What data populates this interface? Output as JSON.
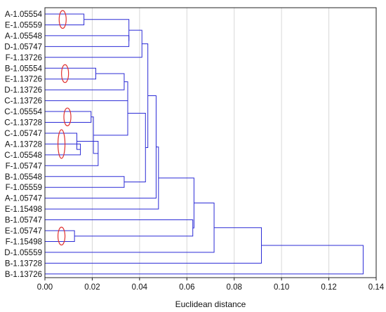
{
  "chart_data": {
    "type": "dendrogram",
    "orientation": "horizontal",
    "xlabel": "Euclidean distance",
    "xlim": [
      0,
      0.14
    ],
    "xticks": [
      "0.00",
      "0.02",
      "0.04",
      "0.06",
      "0.08",
      "0.10",
      "0.12",
      "0.14"
    ],
    "grid": true,
    "leaves": [
      "A-1.05554",
      "E-1.05559",
      "A-1.05548",
      "D-1.05747",
      "F-1.13726",
      "B-1.05554",
      "E-1.13726",
      "D-1.13726",
      "C-1.13726",
      "C-1.05554",
      "C-1.13728",
      "C-1.05747",
      "A-1.13728",
      "C-1.05548",
      "F-1.05747",
      "B-1.05548",
      "F-1.05559",
      "A-1.05747",
      "E-1.15498",
      "B-1.05747",
      "E-1.05747",
      "F-1.15498",
      "D-1.05559",
      "B-1.13728",
      "B-1.13726"
    ],
    "merges": [
      {
        "id": "n1",
        "left": 0,
        "right": 1,
        "height": 0.0165
      },
      {
        "id": "n2",
        "left": 2,
        "right": 3,
        "height": 0.0355
      },
      {
        "id": "n3",
        "left": "n1",
        "right": "n2",
        "height": 0.0355
      },
      {
        "id": "n4",
        "left": "n3",
        "right": 4,
        "height": 0.041
      },
      {
        "id": "n5",
        "left": 5,
        "right": 6,
        "height": 0.0215
      },
      {
        "id": "n6",
        "left": "n5",
        "right": 7,
        "height": 0.0335
      },
      {
        "id": "n7",
        "left": "n6",
        "right": 8,
        "height": 0.035
      },
      {
        "id": "n8",
        "left": 9,
        "right": 10,
        "height": 0.0195
      },
      {
        "id": "n9",
        "left": 12,
        "right": 13,
        "height": 0.015
      },
      {
        "id": "n10",
        "left": 11,
        "right": "n9",
        "height": 0.0135
      },
      {
        "id": "n11",
        "left": "n10",
        "right": 14,
        "height": 0.0225
      },
      {
        "id": "n12",
        "left": "n8",
        "right": "n11",
        "height": 0.0205
      },
      {
        "id": "n13",
        "left": "n7",
        "right": "n12",
        "height": 0.035
      },
      {
        "id": "n14",
        "left": 15,
        "right": 16,
        "height": 0.0335
      },
      {
        "id": "n15",
        "left": "n13",
        "right": "n14",
        "height": 0.0425
      },
      {
        "id": "n16",
        "left": "n4",
        "right": "n15",
        "height": 0.0435
      },
      {
        "id": "n17",
        "left": "n16",
        "right": 17,
        "height": 0.047
      },
      {
        "id": "n18",
        "left": "n17",
        "right": 18,
        "height": 0.048
      },
      {
        "id": "n19",
        "left": 20,
        "right": 21,
        "height": 0.0125
      },
      {
        "id": "n20",
        "left": 19,
        "right": "n19",
        "height": 0.0625
      },
      {
        "id": "n21",
        "left": "n18",
        "right": "n20",
        "height": 0.063
      },
      {
        "id": "n22",
        "left": "n21",
        "right": 22,
        "height": 0.0715
      },
      {
        "id": "n23",
        "left": "n22",
        "right": 23,
        "height": 0.0915
      },
      {
        "id": "n24",
        "left": "n23",
        "right": 24,
        "height": 0.1345
      }
    ],
    "highlights": [
      {
        "rows": [
          0,
          1
        ],
        "x": 0.0075
      },
      {
        "rows": [
          5,
          6
        ],
        "x": 0.0085
      },
      {
        "rows": [
          9,
          10
        ],
        "x": 0.0095
      },
      {
        "rows": [
          11,
          13
        ],
        "x": 0.007
      },
      {
        "rows": [
          20,
          21
        ],
        "x": 0.007
      }
    ],
    "colors": {
      "branch": "#2b2bd6",
      "highlight": "#e03030",
      "grid": "#d8d8d8",
      "frame": "#222222"
    }
  }
}
